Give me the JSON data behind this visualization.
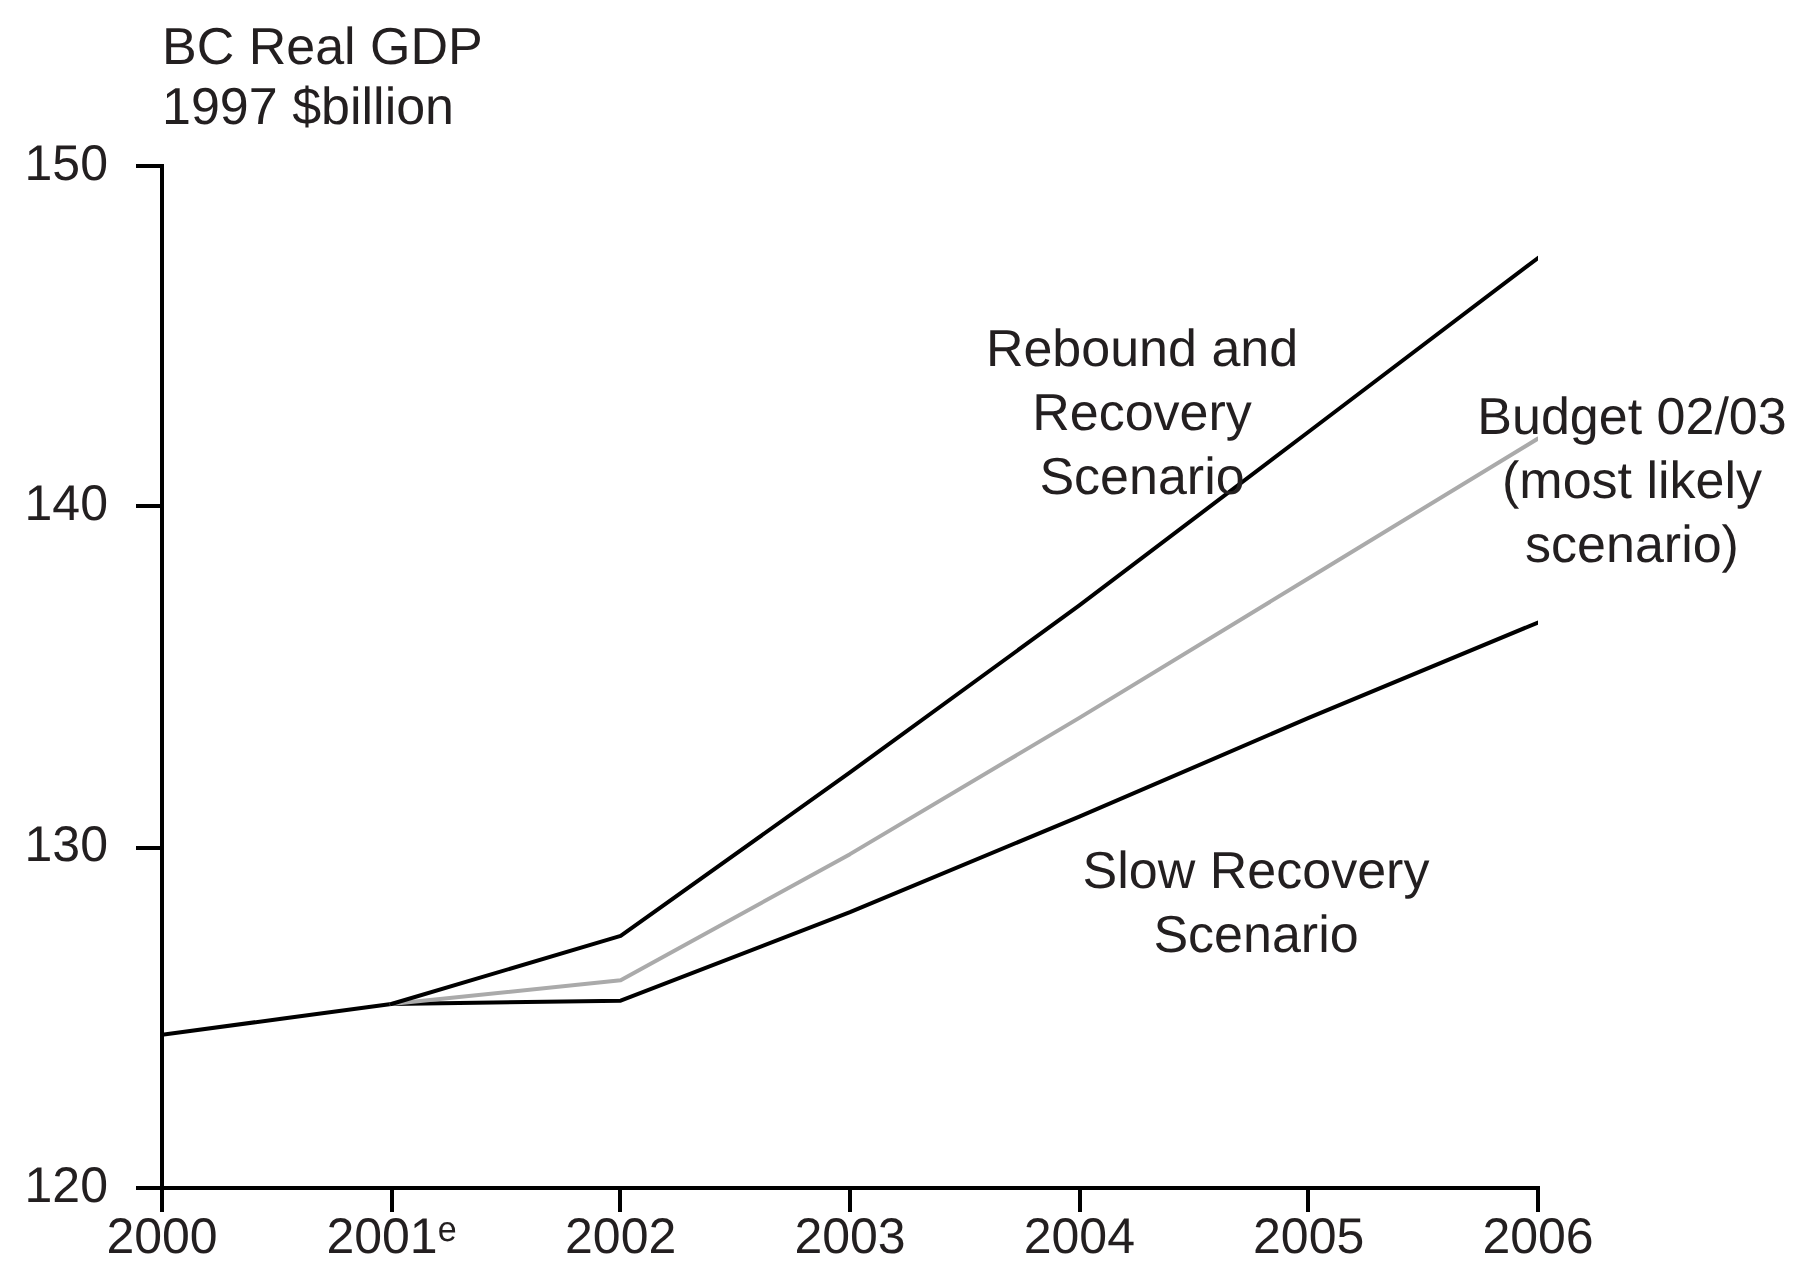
{
  "chart_data": {
    "type": "line",
    "ylabel": "BC Real GDP 1997 $billion",
    "x": [
      2000,
      2001,
      2002,
      2003,
      2004,
      2005,
      2006
    ],
    "series": [
      {
        "name": "Rebound and Recovery Scenario",
        "color": "#000000",
        "values": [
          null,
          125.4,
          127.4,
          132.2,
          137.1,
          142.2,
          147.3
        ]
      },
      {
        "name": "Budget 02/03 (most likely scenario)",
        "color": "#aaaaaa",
        "values": [
          null,
          125.4,
          126.1,
          129.8,
          133.8,
          137.9,
          142.0
        ]
      },
      {
        "name": "Slow Recovery Scenario",
        "color": "#000000",
        "values": [
          124.5,
          125.4,
          125.5,
          128.1,
          130.9,
          133.8,
          136.6
        ]
      }
    ],
    "xlim": [
      2000,
      2006
    ],
    "xticks": [
      2000,
      {
        "value": 2001,
        "label": "2001ᵉ"
      },
      2002,
      2003,
      2004,
      2005,
      2006
    ],
    "ylim": [
      120,
      150
    ],
    "yticks": [
      120,
      130,
      140,
      150
    ],
    "grid": false,
    "legend": false,
    "marker": "none",
    "line_style": "solid"
  }
}
